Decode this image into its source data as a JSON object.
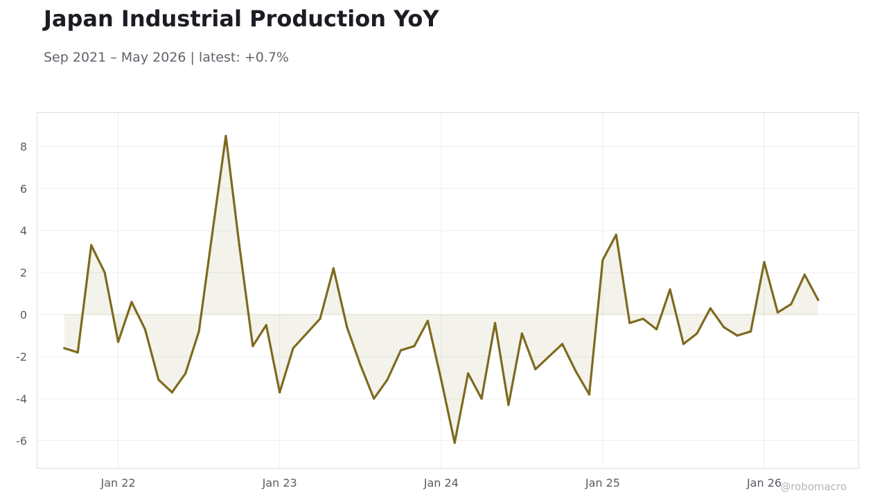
{
  "header": {
    "title": "Japan Industrial Production YoY",
    "subtitle": "Sep 2021 – May 2026 | latest: +0.7%"
  },
  "watermark": "@robomacro",
  "colors": {
    "line": "#7d6a1f",
    "fill": "#7d6a1f",
    "grid": "#ededed",
    "frame": "#dddddd",
    "zero_line": "#e2dccb"
  },
  "chart_data": {
    "type": "line",
    "title": "Japan Industrial Production YoY",
    "subtitle": "Sep 2021 – May 2026 | latest: +0.7%",
    "xlabel": "",
    "ylabel": "",
    "xlim": [
      "2021-07",
      "2026-08"
    ],
    "ylim": [
      -7.3,
      9.6
    ],
    "grid": true,
    "legend": "none",
    "y_ticks": [
      8,
      6,
      4,
      2,
      0,
      -2,
      -4,
      -6
    ],
    "y_tick_labels": [
      "8",
      "6",
      "4",
      "2",
      "0",
      "-2",
      "-4",
      "-6"
    ],
    "x_ticks": [
      "2022-01",
      "2023-01",
      "2024-01",
      "2025-01",
      "2026-01"
    ],
    "x_tick_labels": [
      "Jan 22",
      "Jan 23",
      "Jan 24",
      "Jan 25",
      "Jan 26"
    ],
    "series": [
      {
        "x": [
          "2021-09",
          "2021-10",
          "2021-11",
          "2021-12",
          "2022-01",
          "2022-02",
          "2022-03",
          "2022-04",
          "2022-05",
          "2022-06",
          "2022-07",
          "2022-08",
          "2022-09",
          "2022-10",
          "2022-11",
          "2022-12",
          "2023-01",
          "2023-02",
          "2023-03",
          "2023-04",
          "2023-05",
          "2023-06",
          "2023-07",
          "2023-08",
          "2023-09",
          "2023-10",
          "2023-11",
          "2023-12",
          "2024-01",
          "2024-02",
          "2024-03",
          "2024-04",
          "2024-05",
          "2024-06",
          "2024-07",
          "2024-08",
          "2024-09",
          "2024-10",
          "2024-11",
          "2024-12",
          "2025-01",
          "2025-02",
          "2025-03",
          "2025-04",
          "2025-05",
          "2025-06",
          "2025-07",
          "2025-08",
          "2025-09",
          "2025-10",
          "2025-11",
          "2025-12",
          "2026-01",
          "2026-02",
          "2026-03",
          "2026-04",
          "2026-05"
        ],
        "values": [
          -1.6,
          -1.8,
          3.3,
          2.0,
          -1.3,
          0.6,
          -0.7,
          -3.1,
          -3.7,
          -2.8,
          -0.8,
          3.9,
          8.5,
          3.3,
          -1.5,
          -0.5,
          -3.7,
          -1.6,
          -0.9,
          -0.2,
          2.2,
          -0.6,
          -2.4,
          -4.0,
          -3.1,
          -1.7,
          -1.5,
          -0.3,
          -3.1,
          -6.1,
          -2.8,
          -4.0,
          -0.4,
          -4.3,
          -0.9,
          -2.6,
          -2.0,
          -1.4,
          -2.7,
          -3.8,
          2.6,
          3.8,
          -0.4,
          -0.2,
          -0.7,
          1.2,
          -1.4,
          -0.9,
          0.3,
          -0.6,
          -1.0,
          -0.8,
          2.5,
          0.1,
          0.5,
          1.9,
          0.7
        ]
      }
    ]
  }
}
